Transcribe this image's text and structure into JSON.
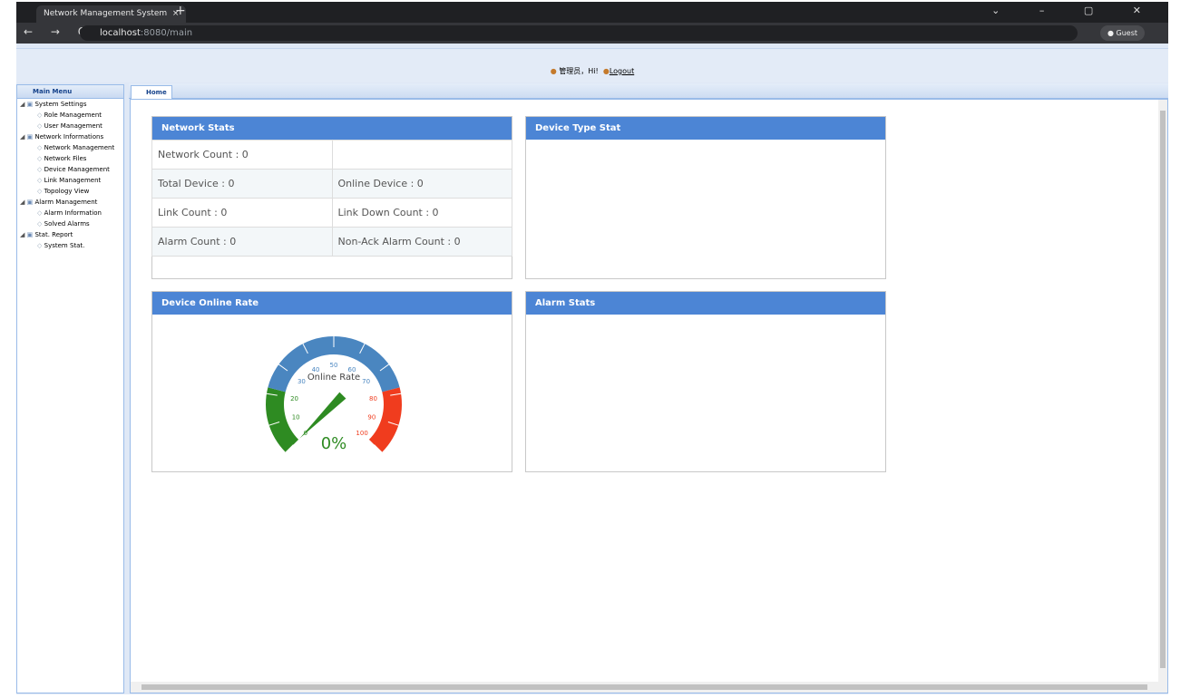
{
  "browser": {
    "tab_title": "Network Management System",
    "url_host": "localhost",
    "url_path": ":8080/main",
    "profile": "Guest"
  },
  "header": {
    "greeting": "管理员，Hi!",
    "logout": "Logout"
  },
  "menu": {
    "title": "Main Menu",
    "groups": [
      {
        "label": "System Settings",
        "items": [
          "Role Management",
          "User Management"
        ]
      },
      {
        "label": "Network Informations",
        "items": [
          "Network Management",
          "Network Files",
          "Device Management",
          "Link Management",
          "Topology View"
        ]
      },
      {
        "label": "Alarm Management",
        "items": [
          "Alarm Information",
          "Solved Alarms"
        ]
      },
      {
        "label": "Stat. Report",
        "items": [
          "System Stat."
        ]
      }
    ]
  },
  "tabs": [
    "Home"
  ],
  "panels": {
    "network_stats": {
      "title": "Network Stats",
      "rows": [
        [
          "Network Count : 0",
          ""
        ],
        [
          "Total Device : 0",
          "Online Device : 0"
        ],
        [
          "Link Count : 0",
          "Link Down Count : 0"
        ],
        [
          "Alarm Count : 0",
          "Non-Ack Alarm Count : 0"
        ]
      ]
    },
    "device_type": {
      "title": "Device Type Stat"
    },
    "online_rate": {
      "title": "Device Online Rate"
    },
    "alarm_stats": {
      "title": "Alarm Stats"
    }
  },
  "gauge": {
    "title": "Online Rate",
    "value": 0,
    "value_label": "0%",
    "min": 0,
    "max": 100,
    "ticks": [
      0,
      10,
      20,
      30,
      40,
      50,
      60,
      70,
      80,
      90,
      100
    ],
    "bands": [
      {
        "from": 0,
        "to": 22,
        "color": "#2e8b22"
      },
      {
        "from": 22,
        "to": 78,
        "color": "#4a86c0"
      },
      {
        "from": 78,
        "to": 100,
        "color": "#f03c1e"
      }
    ]
  }
}
